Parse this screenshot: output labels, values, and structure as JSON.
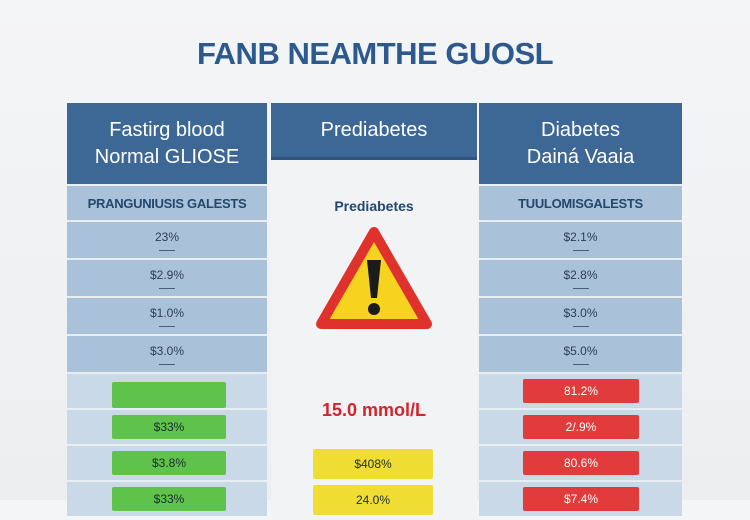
{
  "title": "FANB NEAMTHE GUOSL",
  "left": {
    "header": [
      "Fastirg blood",
      "Normal GLIOSE"
    ],
    "subheader": "PRANGUNIUSIS GALESTS",
    "rows": [
      "23%",
      "$2.9%",
      "$1.0%",
      "$3.0%"
    ],
    "colored": [
      "",
      "$33%",
      "$3.8%",
      "$33%"
    ]
  },
  "middle": {
    "header": "Prediabetes",
    "label": "Prediabetes",
    "icon": "warning-triangle-icon",
    "reading": "15.0 mmol/L",
    "colored": [
      "$408%",
      "24.0%"
    ]
  },
  "right": {
    "header": [
      "Diabetes",
      "Dainá Vaaia"
    ],
    "subheader": "TUULOMISGALESTS",
    "rows": [
      "$2.1%",
      "$2.8%",
      "$3.0%",
      "$5.0%"
    ],
    "colored": [
      "81.2%",
      "2/.9%",
      "80.6%",
      "$7.4%"
    ]
  },
  "colors": {
    "header": "#3d6794",
    "normal": "#5fc24a",
    "prediabetes": "#f0dd34",
    "diabetes": "#e23b3b"
  }
}
